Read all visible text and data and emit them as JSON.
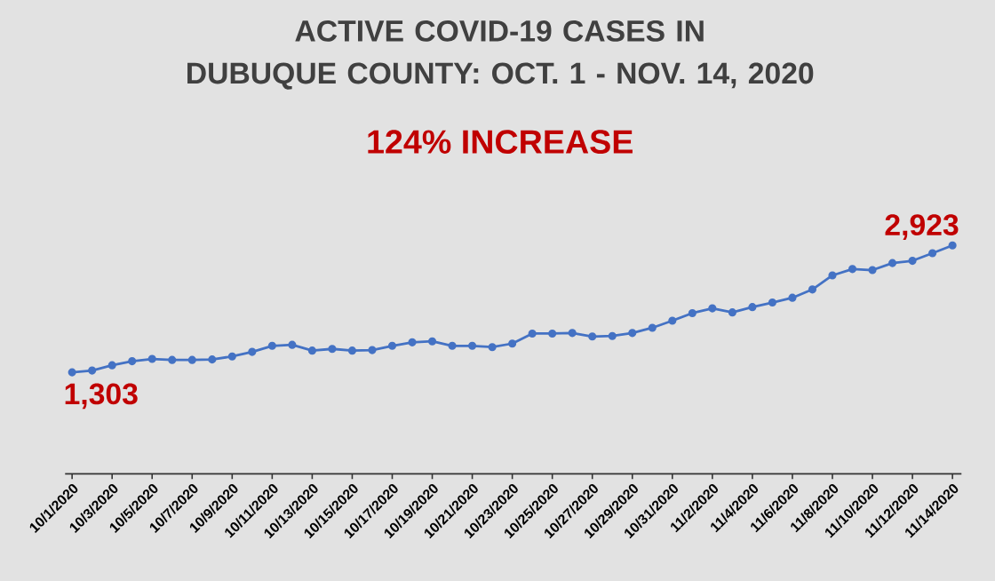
{
  "chart_data": {
    "type": "line",
    "title": "ACTIVE COVID-19 CASES IN\nDUBUQUE COUNTY: OCT. 1 - NOV. 14, 2020",
    "subtitle": "124% INCREASE",
    "categories": [
      "10/1/2020",
      null,
      "10/3/2020",
      null,
      "10/5/2020",
      null,
      "10/7/2020",
      null,
      "10/9/2020",
      null,
      "10/11/2020",
      null,
      "10/13/2020",
      null,
      "10/15/2020",
      null,
      "10/17/2020",
      null,
      "10/19/2020",
      null,
      "10/21/2020",
      null,
      "10/23/2020",
      null,
      "10/25/2020",
      null,
      "10/27/2020",
      null,
      "10/29/2020",
      null,
      "10/31/2020",
      null,
      "11/2/2020",
      null,
      "11/4/2020",
      null,
      "11/6/2020",
      null,
      "11/8/2020",
      null,
      "11/10/2020",
      null,
      "11/12/2020",
      null,
      "11/14/2020"
    ],
    "series": [
      {
        "color": "#4472c4",
        "values": [
          1303,
          1326,
          1393,
          1445,
          1474,
          1461,
          1461,
          1467,
          1506,
          1564,
          1641,
          1654,
          1580,
          1602,
          1580,
          1587,
          1641,
          1686,
          1699,
          1641,
          1641,
          1625,
          1670,
          1798,
          1798,
          1805,
          1760,
          1767,
          1805,
          1872,
          1962,
          2059,
          2120,
          2068,
          2136,
          2194,
          2255,
          2361,
          2541,
          2622,
          2608,
          2698,
          2727,
          2824,
          2923
        ],
        "value_labels": [
          "1,303",
          null,
          null,
          null,
          null,
          null,
          null,
          null,
          null,
          null,
          null,
          null,
          null,
          null,
          null,
          null,
          null,
          null,
          null,
          null,
          null,
          null,
          null,
          null,
          null,
          null,
          null,
          null,
          null,
          null,
          null,
          null,
          null,
          null,
          null,
          null,
          null,
          null,
          null,
          null,
          null,
          null,
          null,
          null,
          "2,923"
        ]
      }
    ],
    "tick_labels": "x",
    "marker": "circle",
    "line_style": "solid"
  }
}
